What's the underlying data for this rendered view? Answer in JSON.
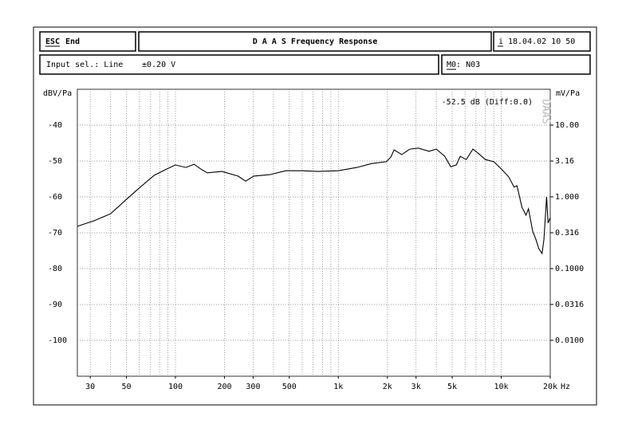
{
  "header": {
    "esc": "ESC",
    "end": "End",
    "title": "D A A S  Frequency Response",
    "info_key": "i",
    "datetime": "18.04.02 10 50",
    "input_sel": "Input sel.: Line",
    "range": "±0.20 V",
    "memory": "M0: N03"
  },
  "chart_data": {
    "type": "line",
    "y_label": "dBV/Pa",
    "y2_label": "mV/Pa",
    "x_unit": "Hz",
    "annotation": "-52.5 dB (Diff:0.0)",
    "watermark": "DAAS",
    "x": [
      25,
      31.5,
      40,
      50,
      59,
      74,
      87,
      100,
      116,
      130,
      145,
      157,
      193,
      242,
      270,
      303,
      380,
      476,
      598,
      750,
      1000,
      1300,
      1600,
      1970,
      2100,
      2200,
      2450,
      2750,
      3100,
      3600,
      4000,
      4500,
      4900,
      5300,
      5600,
      6100,
      6700,
      7200,
      8000,
      9000,
      10000,
      11100,
      12000,
      12500,
      13400,
      14200,
      14700,
      15600,
      16300,
      17000,
      17800,
      18300,
      19000,
      19400,
      20000
    ],
    "series": [
      {
        "name": "Frequency Response",
        "color": "#000000",
        "values": [
          -68.2,
          -66.7,
          -64.7,
          -60.7,
          -57.8,
          -54,
          -52.4,
          -51.1,
          -51.8,
          -50.9,
          -52.4,
          -53.3,
          -52.9,
          -54.2,
          -55.6,
          -54.2,
          -53.8,
          -52.7,
          -52.7,
          -52.9,
          -52.7,
          -51.8,
          -50.7,
          -50.2,
          -48.9,
          -46.9,
          -48.2,
          -46.7,
          -46.4,
          -47.3,
          -46.7,
          -48.7,
          -51.6,
          -51.1,
          -48.7,
          -49.6,
          -46.7,
          -47.8,
          -49.6,
          -50.2,
          -52.2,
          -54.4,
          -57.3,
          -56.9,
          -62.9,
          -65.1,
          -63.3,
          -69.6,
          -71.8,
          -74.4,
          -75.8,
          -71.8,
          -60,
          -67.3,
          -65.8
        ]
      }
    ],
    "xlim": [
      25,
      20000
    ],
    "xlog": true,
    "xticks": [
      30,
      50,
      100,
      200,
      300,
      500,
      {
        "value": 1000,
        "label": "1k"
      },
      {
        "value": 2000,
        "label": "2k"
      },
      {
        "value": 3000,
        "label": "3k"
      },
      {
        "value": 5000,
        "label": "5k"
      },
      {
        "value": 10000,
        "label": "10k"
      },
      {
        "value": 20000,
        "label": "20k"
      }
    ],
    "x_grid": [
      30,
      40,
      50,
      60,
      70,
      80,
      90,
      100,
      200,
      300,
      400,
      500,
      600,
      700,
      800,
      900,
      1000,
      2000,
      3000,
      4000,
      5000,
      6000,
      7000,
      8000,
      9000,
      10000
    ],
    "ylim": [
      -110,
      -30
    ],
    "yticks": [
      -40,
      -50,
      -60,
      -70,
      -80,
      -90,
      -100
    ],
    "y2lim": [
      0.00316,
      31.6
    ],
    "y2log": true,
    "y2ticks": [
      {
        "value": 10,
        "label": "10.00"
      },
      3.16,
      {
        "value": 1,
        "label": "1.000"
      },
      0.316,
      {
        "value": 0.1,
        "label": "0.1000"
      },
      0.0316,
      {
        "value": 0.01,
        "label": "0.0100"
      }
    ],
    "grid": true
  }
}
